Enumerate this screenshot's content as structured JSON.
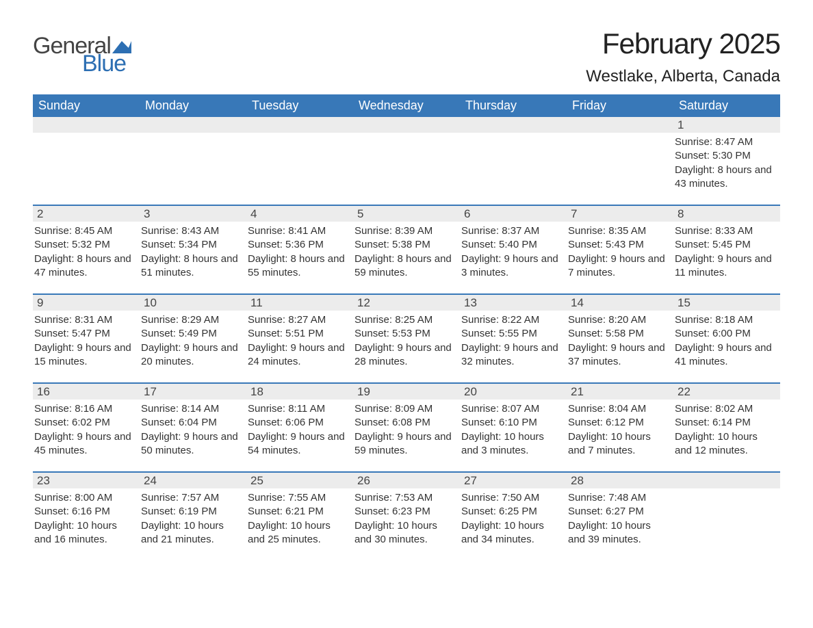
{
  "logo": {
    "text1": "General",
    "text2": "Blue"
  },
  "title": "February 2025",
  "location": "Westlake, Alberta, Canada",
  "colors": {
    "header_bg": "#3878b8",
    "header_text": "#ffffff",
    "daynum_bg": "#ececec",
    "week_border": "#3878b8",
    "text": "#333333",
    "logo_gray": "#444444",
    "logo_blue": "#2d6fb3",
    "background": "#ffffff"
  },
  "weekdays": [
    "Sunday",
    "Monday",
    "Tuesday",
    "Wednesday",
    "Thursday",
    "Friday",
    "Saturday"
  ],
  "weeks": [
    [
      {
        "n": "",
        "lines": []
      },
      {
        "n": "",
        "lines": []
      },
      {
        "n": "",
        "lines": []
      },
      {
        "n": "",
        "lines": []
      },
      {
        "n": "",
        "lines": []
      },
      {
        "n": "",
        "lines": []
      },
      {
        "n": "1",
        "lines": [
          "Sunrise: 8:47 AM",
          "Sunset: 5:30 PM",
          "Daylight: 8 hours and 43 minutes."
        ]
      }
    ],
    [
      {
        "n": "2",
        "lines": [
          "Sunrise: 8:45 AM",
          "Sunset: 5:32 PM",
          "Daylight: 8 hours and 47 minutes."
        ]
      },
      {
        "n": "3",
        "lines": [
          "Sunrise: 8:43 AM",
          "Sunset: 5:34 PM",
          "Daylight: 8 hours and 51 minutes."
        ]
      },
      {
        "n": "4",
        "lines": [
          "Sunrise: 8:41 AM",
          "Sunset: 5:36 PM",
          "Daylight: 8 hours and 55 minutes."
        ]
      },
      {
        "n": "5",
        "lines": [
          "Sunrise: 8:39 AM",
          "Sunset: 5:38 PM",
          "Daylight: 8 hours and 59 minutes."
        ]
      },
      {
        "n": "6",
        "lines": [
          "Sunrise: 8:37 AM",
          "Sunset: 5:40 PM",
          "Daylight: 9 hours and 3 minutes."
        ]
      },
      {
        "n": "7",
        "lines": [
          "Sunrise: 8:35 AM",
          "Sunset: 5:43 PM",
          "Daylight: 9 hours and 7 minutes."
        ]
      },
      {
        "n": "8",
        "lines": [
          "Sunrise: 8:33 AM",
          "Sunset: 5:45 PM",
          "Daylight: 9 hours and 11 minutes."
        ]
      }
    ],
    [
      {
        "n": "9",
        "lines": [
          "Sunrise: 8:31 AM",
          "Sunset: 5:47 PM",
          "Daylight: 9 hours and 15 minutes."
        ]
      },
      {
        "n": "10",
        "lines": [
          "Sunrise: 8:29 AM",
          "Sunset: 5:49 PM",
          "Daylight: 9 hours and 20 minutes."
        ]
      },
      {
        "n": "11",
        "lines": [
          "Sunrise: 8:27 AM",
          "Sunset: 5:51 PM",
          "Daylight: 9 hours and 24 minutes."
        ]
      },
      {
        "n": "12",
        "lines": [
          "Sunrise: 8:25 AM",
          "Sunset: 5:53 PM",
          "Daylight: 9 hours and 28 minutes."
        ]
      },
      {
        "n": "13",
        "lines": [
          "Sunrise: 8:22 AM",
          "Sunset: 5:55 PM",
          "Daylight: 9 hours and 32 minutes."
        ]
      },
      {
        "n": "14",
        "lines": [
          "Sunrise: 8:20 AM",
          "Sunset: 5:58 PM",
          "Daylight: 9 hours and 37 minutes."
        ]
      },
      {
        "n": "15",
        "lines": [
          "Sunrise: 8:18 AM",
          "Sunset: 6:00 PM",
          "Daylight: 9 hours and 41 minutes."
        ]
      }
    ],
    [
      {
        "n": "16",
        "lines": [
          "Sunrise: 8:16 AM",
          "Sunset: 6:02 PM",
          "Daylight: 9 hours and 45 minutes."
        ]
      },
      {
        "n": "17",
        "lines": [
          "Sunrise: 8:14 AM",
          "Sunset: 6:04 PM",
          "Daylight: 9 hours and 50 minutes."
        ]
      },
      {
        "n": "18",
        "lines": [
          "Sunrise: 8:11 AM",
          "Sunset: 6:06 PM",
          "Daylight: 9 hours and 54 minutes."
        ]
      },
      {
        "n": "19",
        "lines": [
          "Sunrise: 8:09 AM",
          "Sunset: 6:08 PM",
          "Daylight: 9 hours and 59 minutes."
        ]
      },
      {
        "n": "20",
        "lines": [
          "Sunrise: 8:07 AM",
          "Sunset: 6:10 PM",
          "Daylight: 10 hours and 3 minutes."
        ]
      },
      {
        "n": "21",
        "lines": [
          "Sunrise: 8:04 AM",
          "Sunset: 6:12 PM",
          "Daylight: 10 hours and 7 minutes."
        ]
      },
      {
        "n": "22",
        "lines": [
          "Sunrise: 8:02 AM",
          "Sunset: 6:14 PM",
          "Daylight: 10 hours and 12 minutes."
        ]
      }
    ],
    [
      {
        "n": "23",
        "lines": [
          "Sunrise: 8:00 AM",
          "Sunset: 6:16 PM",
          "Daylight: 10 hours and 16 minutes."
        ]
      },
      {
        "n": "24",
        "lines": [
          "Sunrise: 7:57 AM",
          "Sunset: 6:19 PM",
          "Daylight: 10 hours and 21 minutes."
        ]
      },
      {
        "n": "25",
        "lines": [
          "Sunrise: 7:55 AM",
          "Sunset: 6:21 PM",
          "Daylight: 10 hours and 25 minutes."
        ]
      },
      {
        "n": "26",
        "lines": [
          "Sunrise: 7:53 AM",
          "Sunset: 6:23 PM",
          "Daylight: 10 hours and 30 minutes."
        ]
      },
      {
        "n": "27",
        "lines": [
          "Sunrise: 7:50 AM",
          "Sunset: 6:25 PM",
          "Daylight: 10 hours and 34 minutes."
        ]
      },
      {
        "n": "28",
        "lines": [
          "Sunrise: 7:48 AM",
          "Sunset: 6:27 PM",
          "Daylight: 10 hours and 39 minutes."
        ]
      },
      {
        "n": "",
        "lines": []
      }
    ]
  ]
}
